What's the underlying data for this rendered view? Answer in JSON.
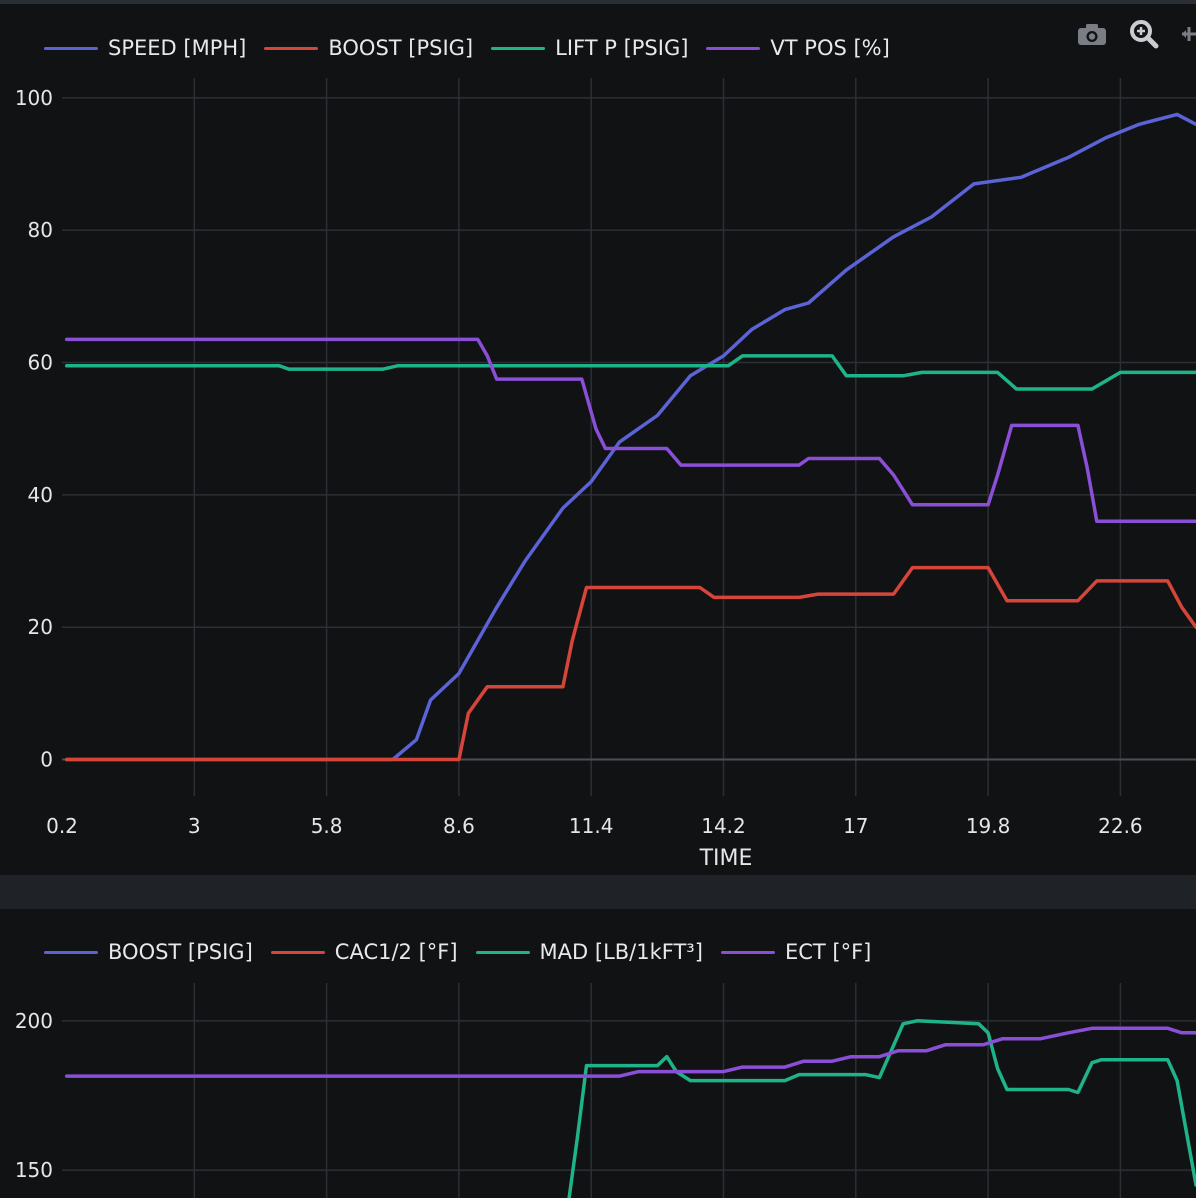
{
  "toolbar": {
    "icons": [
      "camera-icon",
      "zoom-icon",
      "pan-icon"
    ]
  },
  "chart_data": [
    {
      "type": "line",
      "xlabel": "TIME",
      "ylabel": "",
      "xlim": [
        0.2,
        24.2
      ],
      "ylim": [
        -4,
        103
      ],
      "xticks": [
        0.2,
        3,
        5.8,
        8.6,
        11.4,
        14.2,
        17,
        19.8,
        22.6
      ],
      "xtick_labels": [
        "0.2",
        "3",
        "5.8",
        "8.6",
        "11.4",
        "14.2",
        "17",
        "19.8",
        "22.6"
      ],
      "yticks": [
        0,
        20,
        40,
        60,
        80,
        100
      ],
      "ytick_labels": [
        "0",
        "20",
        "40",
        "60",
        "80",
        "100"
      ],
      "grid": true,
      "legend_position": "top-left",
      "series": [
        {
          "name": "SPEED [MPH]",
          "color": "#5b63d6",
          "x": [
            0.3,
            7.2,
            7.7,
            8.0,
            8.6,
            9.0,
            9.4,
            10.0,
            10.8,
            11.4,
            12.0,
            12.8,
            13.5,
            14.2,
            14.8,
            15.5,
            16.0,
            16.8,
            17.8,
            18.6,
            19.5,
            20.5,
            21.5,
            22.3,
            23.0,
            23.8,
            24.2
          ],
          "values": [
            0,
            0,
            3,
            9,
            13,
            18,
            23,
            30,
            38,
            42,
            48,
            52,
            58,
            61,
            65,
            68,
            69,
            74,
            79,
            82,
            87,
            88,
            91,
            94,
            96,
            97.5,
            96
          ]
        },
        {
          "name": "BOOST [PSIG]",
          "color": "#d6453a",
          "x": [
            0.3,
            8.6,
            8.8,
            9.2,
            10.8,
            11.0,
            11.3,
            13.7,
            14.0,
            15.8,
            16.2,
            17.8,
            18.2,
            19.8,
            20.2,
            21.7,
            22.1,
            23.6,
            23.9,
            24.2
          ],
          "values": [
            0,
            0,
            7,
            11,
            11,
            18,
            26,
            26,
            24.5,
            24.5,
            25,
            25,
            29,
            29,
            24,
            24,
            27,
            27,
            23,
            20
          ]
        },
        {
          "name": "LIFT P [PSIG]",
          "color": "#1fb38a",
          "x": [
            0.3,
            4.8,
            5.0,
            7.0,
            7.3,
            14.3,
            14.6,
            16.5,
            16.8,
            18.0,
            18.4,
            20.0,
            20.4,
            21.8,
            22.0,
            22.6,
            24.2
          ],
          "values": [
            59.5,
            59.5,
            59,
            59,
            59.5,
            59.5,
            61,
            61,
            58,
            58,
            58.5,
            58.5,
            56,
            56,
            56,
            58.5,
            58.5
          ]
        },
        {
          "name": "VT POS [%]",
          "color": "#8a4fd6",
          "x": [
            0.3,
            9.0,
            9.2,
            9.4,
            11.2,
            11.5,
            11.7,
            13.0,
            13.3,
            15.8,
            16.0,
            17.5,
            17.8,
            18.2,
            19.8,
            20.0,
            20.3,
            21.7,
            21.9,
            22.1,
            24.2
          ],
          "values": [
            63.5,
            63.5,
            61,
            57.5,
            57.5,
            50,
            47,
            47,
            44.5,
            44.5,
            45.5,
            45.5,
            43,
            38.5,
            38.5,
            43,
            50.5,
            50.5,
            44,
            36,
            36
          ]
        }
      ]
    },
    {
      "type": "line",
      "xlabel": "",
      "ylabel": "",
      "xlim": [
        0.2,
        24.2
      ],
      "ylim": [
        137,
        212
      ],
      "yticks": [
        150,
        200
      ],
      "ytick_labels": [
        "150",
        "200"
      ],
      "grid": true,
      "legend_position": "top-left",
      "series": [
        {
          "name": "BOOST [PSIG]",
          "color": "#5b63d6",
          "x": [],
          "values": []
        },
        {
          "name": "CAC1/2 [°F]",
          "color": "#d6453a",
          "x": [],
          "values": []
        },
        {
          "name": "MAD [LB/1kFT³]",
          "color": "#1fb38a",
          "x": [
            10.9,
            11.1,
            11.3,
            12.8,
            13.0,
            13.2,
            13.5,
            15.5,
            15.8,
            17.2,
            17.5,
            18.0,
            18.3,
            19.6,
            19.8,
            20.0,
            20.2,
            21.5,
            21.7,
            22.0,
            22.2,
            23.6,
            23.8,
            24.2
          ],
          "values": [
            137,
            160,
            185,
            185,
            188,
            183,
            180,
            180,
            182,
            182,
            181,
            199,
            200,
            199,
            196,
            184,
            177,
            177,
            176,
            186,
            187,
            187,
            180,
            145
          ]
        },
        {
          "name": "ECT [°F]",
          "color": "#8a4fd6",
          "x": [
            0.3,
            12.0,
            12.4,
            13.5,
            14.2,
            14.6,
            15.5,
            15.9,
            16.5,
            16.9,
            17.5,
            17.9,
            18.5,
            18.9,
            19.7,
            20.1,
            20.9,
            21.5,
            22.0,
            23.6,
            23.9,
            24.2
          ],
          "values": [
            181.5,
            181.5,
            183,
            183,
            183,
            184.5,
            184.5,
            186.5,
            186.5,
            188,
            188,
            190,
            190,
            192,
            192,
            194,
            194,
            196,
            197.5,
            197.5,
            196,
            196
          ]
        }
      ]
    }
  ]
}
